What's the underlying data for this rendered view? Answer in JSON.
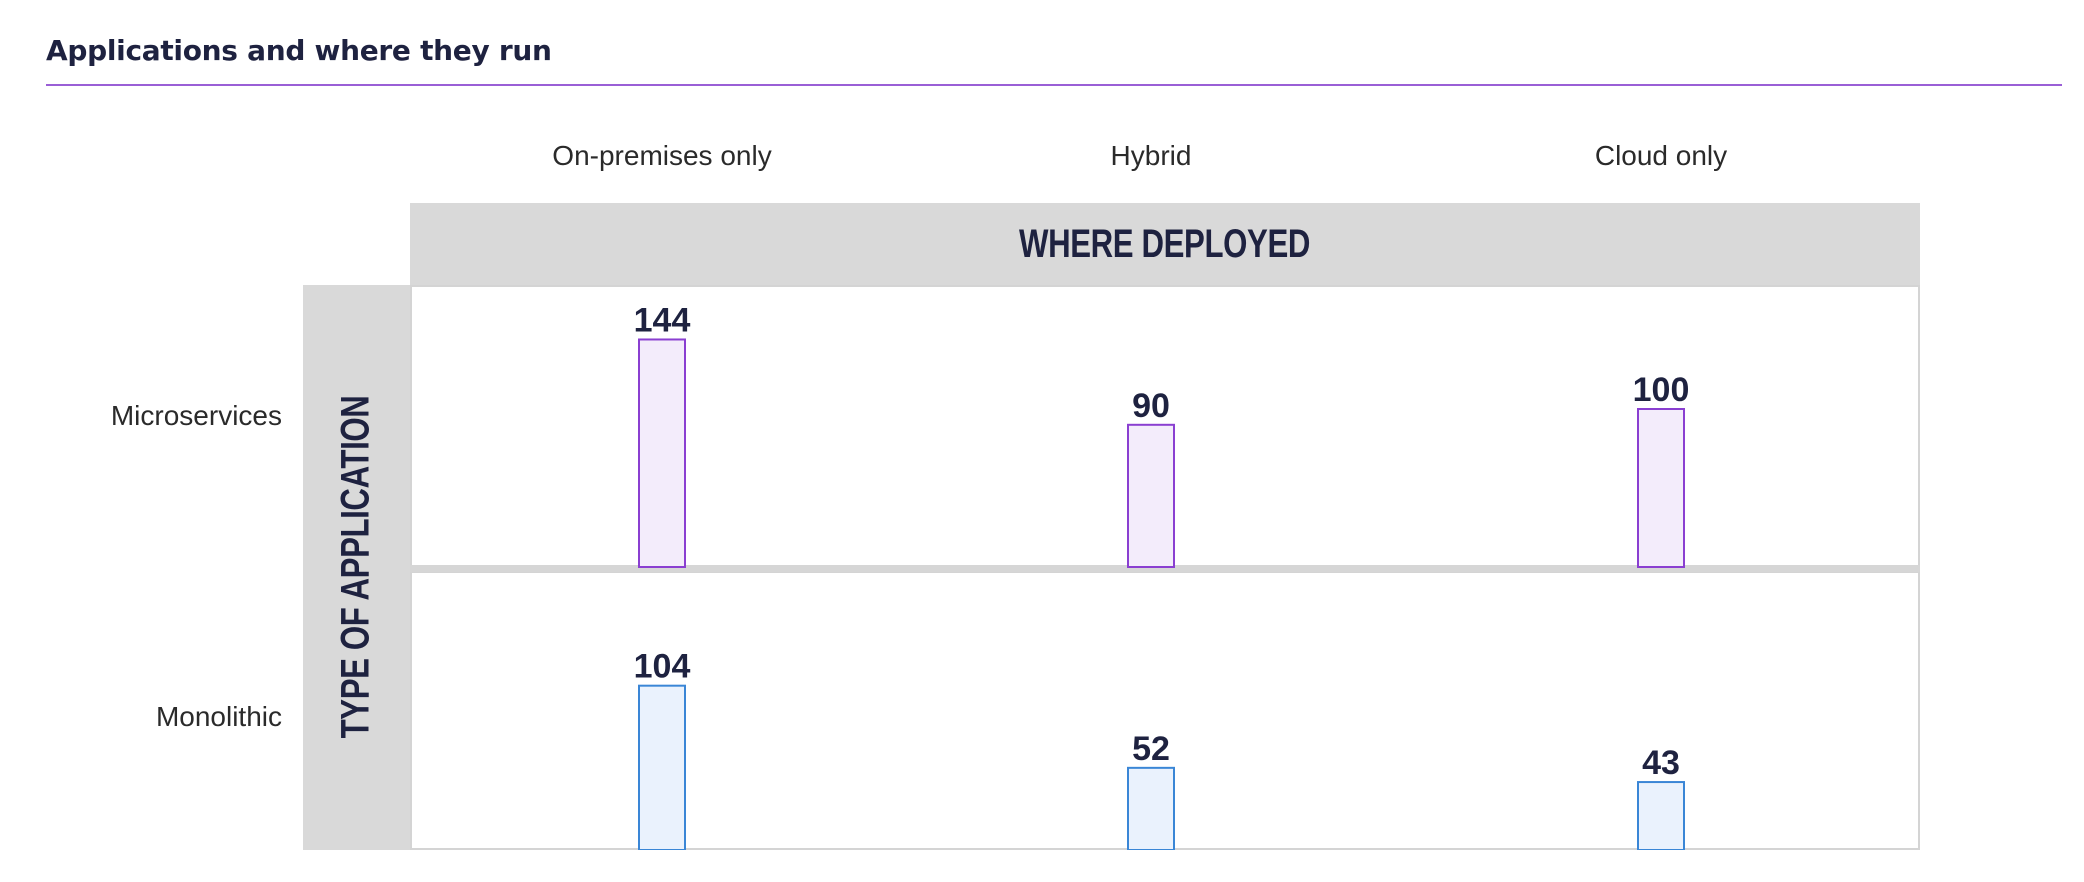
{
  "title": "Applications and where they run",
  "columns": {
    "header": "WHERE DEPLOYED",
    "labels": [
      "On-premises only",
      "Hybrid",
      "Cloud only"
    ]
  },
  "rows": {
    "header": "TYPE OF APPLICATION",
    "labels": [
      "Microservices",
      "Monolithic"
    ]
  },
  "colors": {
    "microservices_stroke": "#8a3fd1",
    "microservices_fill": "#f3ecfb",
    "monolithic_stroke": "#3a86d6",
    "monolithic_fill": "#eaf2fd",
    "header_bg": "#d9d9d9",
    "title_rule": "#9a5fd6"
  },
  "chart_data": {
    "type": "bar",
    "categories": [
      "On-premises only",
      "Hybrid",
      "Cloud only"
    ],
    "series": [
      {
        "name": "Microservices",
        "values": [
          144,
          90,
          100
        ]
      },
      {
        "name": "Monolithic",
        "values": [
          104,
          52,
          43
        ]
      }
    ],
    "xlabel": "WHERE DEPLOYED",
    "ylabel": "TYPE OF APPLICATION"
  }
}
